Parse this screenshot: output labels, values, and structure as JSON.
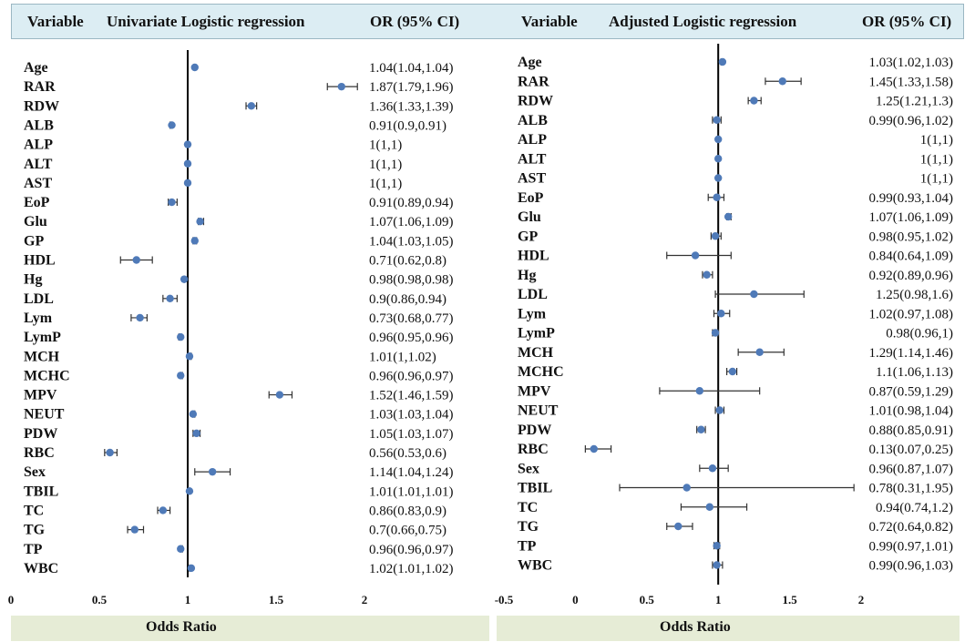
{
  "headers": {
    "left": {
      "variable": "Variable",
      "title": "Univariate  Logistic  regression",
      "or": "OR (95% CI)"
    },
    "right": {
      "variable": "Variable",
      "title": "Adjusted Logistic  regression",
      "or": "OR (95% CI)"
    }
  },
  "footer": {
    "left": "Odds Ratio",
    "right": "Odds Ratio"
  },
  "colors": {
    "point": "#4f7ab8",
    "header_bg": "#dcedf3",
    "footer_bg": "#e6ecd6",
    "axis": "#000000"
  },
  "chart_data": [
    {
      "type": "scatter",
      "title": "Univariate  Logistic  regression",
      "xlabel": "Odds Ratio",
      "xlim": [
        0,
        2
      ],
      "xticks": [
        0,
        0.5,
        1,
        1.5,
        2
      ],
      "tick_labels": [
        "0",
        "0.5",
        "1",
        "1.5",
        "2"
      ],
      "reference_line": 1,
      "rows": [
        {
          "label": "Age",
          "or": 1.04,
          "lo": 1.04,
          "hi": 1.04,
          "text": "1.04(1.04,1.04)"
        },
        {
          "label": "RAR",
          "or": 1.87,
          "lo": 1.79,
          "hi": 1.96,
          "text": "1.87(1.79,1.96)"
        },
        {
          "label": "RDW",
          "or": 1.36,
          "lo": 1.33,
          "hi": 1.39,
          "text": "1.36(1.33,1.39)"
        },
        {
          "label": "ALB",
          "or": 0.91,
          "lo": 0.9,
          "hi": 0.91,
          "text": "0.91(0.9,0.91)"
        },
        {
          "label": "ALP",
          "or": 1,
          "lo": 1,
          "hi": 1,
          "text": "1(1,1)"
        },
        {
          "label": "ALT",
          "or": 1,
          "lo": 1,
          "hi": 1,
          "text": "1(1,1)"
        },
        {
          "label": "AST",
          "or": 1,
          "lo": 1,
          "hi": 1,
          "text": "1(1,1)"
        },
        {
          "label": "EoP",
          "or": 0.91,
          "lo": 0.89,
          "hi": 0.94,
          "text": "0.91(0.89,0.94)"
        },
        {
          "label": "Glu",
          "or": 1.07,
          "lo": 1.06,
          "hi": 1.09,
          "text": "1.07(1.06,1.09)"
        },
        {
          "label": "GP",
          "or": 1.04,
          "lo": 1.03,
          "hi": 1.05,
          "text": "1.04(1.03,1.05)"
        },
        {
          "label": "HDL",
          "or": 0.71,
          "lo": 0.62,
          "hi": 0.8,
          "text": "0.71(0.62,0.8)"
        },
        {
          "label": "Hg",
          "or": 0.98,
          "lo": 0.98,
          "hi": 0.98,
          "text": "0.98(0.98,0.98)"
        },
        {
          "label": "LDL",
          "or": 0.9,
          "lo": 0.86,
          "hi": 0.94,
          "text": "0.9(0.86,0.94)"
        },
        {
          "label": "Lym",
          "or": 0.73,
          "lo": 0.68,
          "hi": 0.77,
          "text": "0.73(0.68,0.77)"
        },
        {
          "label": "LymP",
          "or": 0.96,
          "lo": 0.95,
          "hi": 0.96,
          "text": "0.96(0.95,0.96)"
        },
        {
          "label": "MCH",
          "or": 1.01,
          "lo": 1,
          "hi": 1.02,
          "text": "1.01(1,1.02)"
        },
        {
          "label": "MCHC",
          "or": 0.96,
          "lo": 0.96,
          "hi": 0.97,
          "text": "0.96(0.96,0.97)"
        },
        {
          "label": "MPV",
          "or": 1.52,
          "lo": 1.46,
          "hi": 1.59,
          "text": "1.52(1.46,1.59)"
        },
        {
          "label": "NEUT",
          "or": 1.03,
          "lo": 1.03,
          "hi": 1.04,
          "text": "1.03(1.03,1.04)"
        },
        {
          "label": "PDW",
          "or": 1.05,
          "lo": 1.03,
          "hi": 1.07,
          "text": "1.05(1.03,1.07)"
        },
        {
          "label": "RBC",
          "or": 0.56,
          "lo": 0.53,
          "hi": 0.6,
          "text": "0.56(0.53,0.6)"
        },
        {
          "label": "Sex",
          "or": 1.14,
          "lo": 1.04,
          "hi": 1.24,
          "text": "1.14(1.04,1.24)"
        },
        {
          "label": "TBIL",
          "or": 1.01,
          "lo": 1.01,
          "hi": 1.01,
          "text": "1.01(1.01,1.01)"
        },
        {
          "label": "TC",
          "or": 0.86,
          "lo": 0.83,
          "hi": 0.9,
          "text": "0.86(0.83,0.9)"
        },
        {
          "label": "TG",
          "or": 0.7,
          "lo": 0.66,
          "hi": 0.75,
          "text": "0.7(0.66,0.75)"
        },
        {
          "label": "TP",
          "or": 0.96,
          "lo": 0.96,
          "hi": 0.97,
          "text": "0.96(0.96,0.97)"
        },
        {
          "label": "WBC",
          "or": 1.02,
          "lo": 1.01,
          "hi": 1.02,
          "text": "1.02(1.01,1.02)"
        }
      ]
    },
    {
      "type": "scatter",
      "title": "Adjusted Logistic  regression",
      "xlabel": "Odds Ratio",
      "xlim": [
        -0.5,
        2
      ],
      "xticks": [
        -0.5,
        0,
        0.5,
        1,
        1.5,
        2
      ],
      "tick_labels": [
        "-0.5",
        "0",
        "0.5",
        "1",
        "1.5",
        "2"
      ],
      "reference_line": 1,
      "rows": [
        {
          "label": "Age",
          "or": 1.03,
          "lo": 1.02,
          "hi": 1.03,
          "text": "1.03(1.02,1.03)"
        },
        {
          "label": "RAR",
          "or": 1.45,
          "lo": 1.33,
          "hi": 1.58,
          "text": "1.45(1.33,1.58)"
        },
        {
          "label": "RDW",
          "or": 1.25,
          "lo": 1.21,
          "hi": 1.3,
          "text": "1.25(1.21,1.3)"
        },
        {
          "label": "ALB",
          "or": 0.99,
          "lo": 0.96,
          "hi": 1.02,
          "text": "0.99(0.96,1.02)"
        },
        {
          "label": "ALP",
          "or": 1,
          "lo": 1,
          "hi": 1,
          "text": "1(1,1)"
        },
        {
          "label": "ALT",
          "or": 1,
          "lo": 1,
          "hi": 1,
          "text": "1(1,1)"
        },
        {
          "label": "AST",
          "or": 1,
          "lo": 1,
          "hi": 1,
          "text": "1(1,1)"
        },
        {
          "label": "EoP",
          "or": 0.99,
          "lo": 0.93,
          "hi": 1.04,
          "text": "0.99(0.93,1.04)"
        },
        {
          "label": "Glu",
          "or": 1.07,
          "lo": 1.06,
          "hi": 1.09,
          "text": "1.07(1.06,1.09)"
        },
        {
          "label": "GP",
          "or": 0.98,
          "lo": 0.95,
          "hi": 1.02,
          "text": "0.98(0.95,1.02)"
        },
        {
          "label": "HDL",
          "or": 0.84,
          "lo": 0.64,
          "hi": 1.09,
          "text": "0.84(0.64,1.09)"
        },
        {
          "label": "Hg",
          "or": 0.92,
          "lo": 0.89,
          "hi": 0.96,
          "text": "0.92(0.89,0.96)"
        },
        {
          "label": "LDL",
          "or": 1.25,
          "lo": 0.98,
          "hi": 1.6,
          "text": "1.25(0.98,1.6)"
        },
        {
          "label": "Lym",
          "or": 1.02,
          "lo": 0.97,
          "hi": 1.08,
          "text": "1.02(0.97,1.08)"
        },
        {
          "label": "LymP",
          "or": 0.98,
          "lo": 0.96,
          "hi": 1,
          "text": "0.98(0.96,1)"
        },
        {
          "label": "MCH",
          "or": 1.29,
          "lo": 1.14,
          "hi": 1.46,
          "text": "1.29(1.14,1.46)"
        },
        {
          "label": "MCHC",
          "or": 1.1,
          "lo": 1.06,
          "hi": 1.13,
          "text": "1.1(1.06,1.13)"
        },
        {
          "label": "MPV",
          "or": 0.87,
          "lo": 0.59,
          "hi": 1.29,
          "text": "0.87(0.59,1.29)"
        },
        {
          "label": "NEUT",
          "or": 1.01,
          "lo": 0.98,
          "hi": 1.04,
          "text": "1.01(0.98,1.04)"
        },
        {
          "label": "PDW",
          "or": 0.88,
          "lo": 0.85,
          "hi": 0.91,
          "text": "0.88(0.85,0.91)"
        },
        {
          "label": "RBC",
          "or": 0.13,
          "lo": 0.07,
          "hi": 0.25,
          "text": "0.13(0.07,0.25)"
        },
        {
          "label": "Sex",
          "or": 0.96,
          "lo": 0.87,
          "hi": 1.07,
          "text": "0.96(0.87,1.07)"
        },
        {
          "label": "TBIL",
          "or": 0.78,
          "lo": 0.31,
          "hi": 1.95,
          "text": "0.78(0.31,1.95)"
        },
        {
          "label": "TC",
          "or": 0.94,
          "lo": 0.74,
          "hi": 1.2,
          "text": "0.94(0.74,1.2)"
        },
        {
          "label": "TG",
          "or": 0.72,
          "lo": 0.64,
          "hi": 0.82,
          "text": "0.72(0.64,0.82)"
        },
        {
          "label": "TP",
          "or": 0.99,
          "lo": 0.97,
          "hi": 1.01,
          "text": "0.99(0.97,1.01)"
        },
        {
          "label": "WBC",
          "or": 0.99,
          "lo": 0.96,
          "hi": 1.03,
          "text": "0.99(0.96,1.03)"
        }
      ]
    }
  ]
}
